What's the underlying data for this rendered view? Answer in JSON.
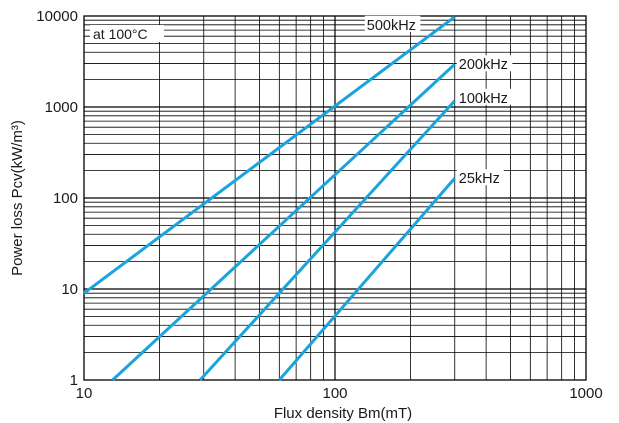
{
  "chart_data": {
    "type": "line",
    "xlabel": "Flux density Bm(mT)",
    "ylabel": "Power loss Pcv(kW/m³)",
    "annotation": "at 100°C",
    "x_scale": "log",
    "y_scale": "log",
    "xlim": [
      10,
      1000
    ],
    "ylim": [
      1,
      10000
    ],
    "x_ticks": [
      "10",
      "100",
      "1000"
    ],
    "y_ticks": [
      "1",
      "10",
      "100",
      "1000",
      "10000"
    ],
    "grid": true,
    "series": [
      {
        "name": "500kHz",
        "x": [
          10,
          300
        ],
        "y": [
          9,
          9800
        ]
      },
      {
        "name": "200kHz",
        "x": [
          13,
          300
        ],
        "y": [
          1,
          2950
        ]
      },
      {
        "name": "100kHz",
        "x": [
          29,
          300
        ],
        "y": [
          1,
          1170
        ]
      },
      {
        "name": "25kHz",
        "x": [
          60,
          300
        ],
        "y": [
          1,
          165
        ]
      }
    ],
    "colors": {
      "line": "#1aa3dd",
      "grid": "#000000",
      "text": "#1a1a1a"
    }
  }
}
